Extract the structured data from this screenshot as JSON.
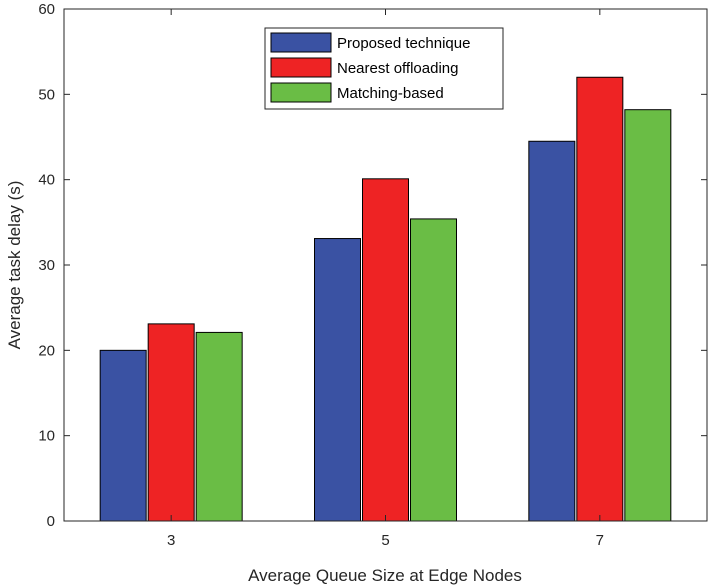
{
  "chart_data": {
    "type": "bar",
    "title": "",
    "xlabel": "Average Queue Size at Edge Nodes",
    "ylabel": "Average task delay (s)",
    "categories": [
      "3",
      "5",
      "7"
    ],
    "ylim": [
      0,
      60
    ],
    "yticks": [
      0,
      10,
      20,
      30,
      40,
      50,
      60
    ],
    "grid": false,
    "legend_position": "top-center",
    "series": [
      {
        "name": "Proposed technique",
        "color": "#3a52a3",
        "values": [
          20.0,
          33.1,
          44.5
        ]
      },
      {
        "name": "Nearest offloading",
        "color": "#ee2324",
        "values": [
          23.1,
          40.1,
          52.0
        ]
      },
      {
        "name": "Matching-based",
        "color": "#6abd45",
        "values": [
          22.1,
          35.4,
          48.2
        ]
      }
    ]
  }
}
